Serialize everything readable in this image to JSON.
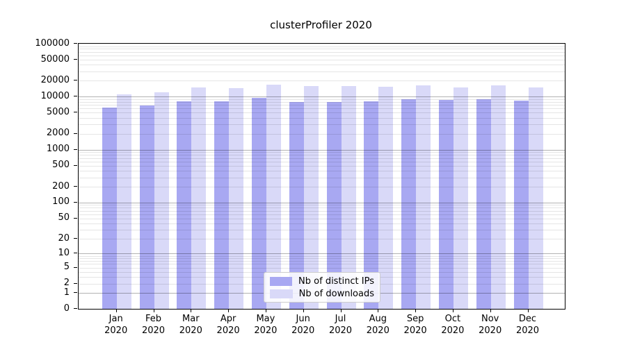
{
  "chart_data": {
    "type": "bar",
    "title": "clusterProfiler 2020",
    "categories": [
      "Jan",
      "Feb",
      "Mar",
      "Apr",
      "May",
      "Jun",
      "Jul",
      "Aug",
      "Sep",
      "Oct",
      "Nov",
      "Dec"
    ],
    "category_year": "2020",
    "series": [
      {
        "name": "Nb of distinct IPs",
        "color": "#a8a8f2",
        "values": [
          6300,
          6900,
          8200,
          8200,
          9600,
          8000,
          7900,
          8300,
          9100,
          8800,
          9100,
          8400
        ]
      },
      {
        "name": "Nb of downloads",
        "color": "#d9d9f8",
        "values": [
          11200,
          12200,
          15100,
          14500,
          17000,
          15900,
          15900,
          15500,
          16600,
          15100,
          16300,
          14800
        ]
      }
    ],
    "xlabel": "",
    "ylabel": "",
    "yscale": "log1p",
    "ylim": [
      0,
      100000
    ],
    "yticks": [
      0,
      1,
      2,
      5,
      10,
      20,
      50,
      100,
      200,
      500,
      1000,
      2000,
      5000,
      10000,
      20000,
      50000,
      100000
    ],
    "grid": {
      "on": true,
      "major_at_powers_of_ten": true,
      "minor_subs": [
        2,
        3,
        4,
        5,
        6,
        7,
        8,
        9
      ],
      "major_color": "#b3b3b3",
      "minor_color": "#e6e6e6"
    },
    "legend": {
      "position": "inside-bottom-center",
      "entries": [
        "Nb of distinct IPs",
        "Nb of downloads"
      ]
    },
    "axis_color": "#000000",
    "background_color": "#ffffff"
  }
}
